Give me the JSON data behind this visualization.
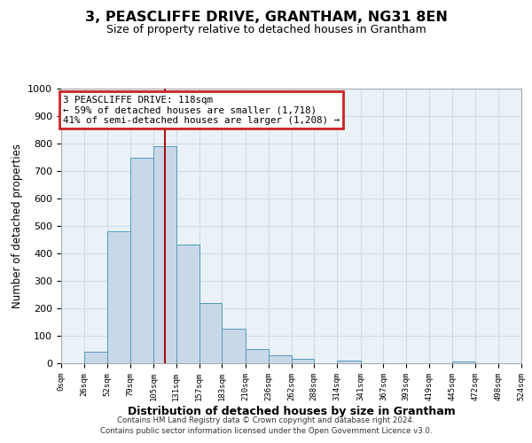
{
  "title": "3, PEASCLIFFE DRIVE, GRANTHAM, NG31 8EN",
  "subtitle": "Size of property relative to detached houses in Grantham",
  "xlabel": "Distribution of detached houses by size in Grantham",
  "ylabel": "Number of detached properties",
  "bar_left_edges": [
    0,
    26,
    52,
    79,
    105,
    131,
    157,
    183,
    210,
    236,
    262,
    288,
    314,
    341,
    367,
    393,
    419,
    445,
    472,
    498
  ],
  "bar_widths": [
    26,
    26,
    27,
    26,
    26,
    26,
    26,
    27,
    26,
    26,
    26,
    26,
    27,
    26,
    26,
    26,
    26,
    27,
    26,
    26
  ],
  "bar_heights": [
    0,
    43,
    482,
    748,
    790,
    433,
    218,
    127,
    52,
    29,
    15,
    0,
    10,
    0,
    0,
    0,
    0,
    8,
    0,
    0
  ],
  "bar_color": "#c8d8e8",
  "bar_edge_color": "#5599bb",
  "vline_x": 118,
  "vline_color": "#aa1111",
  "annotation_line1": "3 PEASCLIFFE DRIVE: 118sqm",
  "annotation_line2": "← 59% of detached houses are smaller (1,718)",
  "annotation_line3": "41% of semi-detached houses are larger (1,208) →",
  "annotation_box_color": "#cc2222",
  "ylim": [
    0,
    1000
  ],
  "xlim": [
    0,
    524
  ],
  "xtick_positions": [
    0,
    26,
    52,
    79,
    105,
    131,
    157,
    183,
    210,
    236,
    262,
    288,
    314,
    341,
    367,
    393,
    419,
    445,
    472,
    498,
    524
  ],
  "xtick_labels": [
    "0sqm",
    "26sqm",
    "52sqm",
    "79sqm",
    "105sqm",
    "131sqm",
    "157sqm",
    "183sqm",
    "210sqm",
    "236sqm",
    "262sqm",
    "288sqm",
    "314sqm",
    "341sqm",
    "367sqm",
    "393sqm",
    "419sqm",
    "445sqm",
    "472sqm",
    "498sqm",
    "524sqm"
  ],
  "ytick_values": [
    0,
    100,
    200,
    300,
    400,
    500,
    600,
    700,
    800,
    900,
    1000
  ],
  "grid_color": "#ccdde8",
  "bg_color": "#eaf2f8",
  "footer1": "Contains HM Land Registry data © Crown copyright and database right 2024.",
  "footer2": "Contains public sector information licensed under the Open Government Licence v3.0."
}
